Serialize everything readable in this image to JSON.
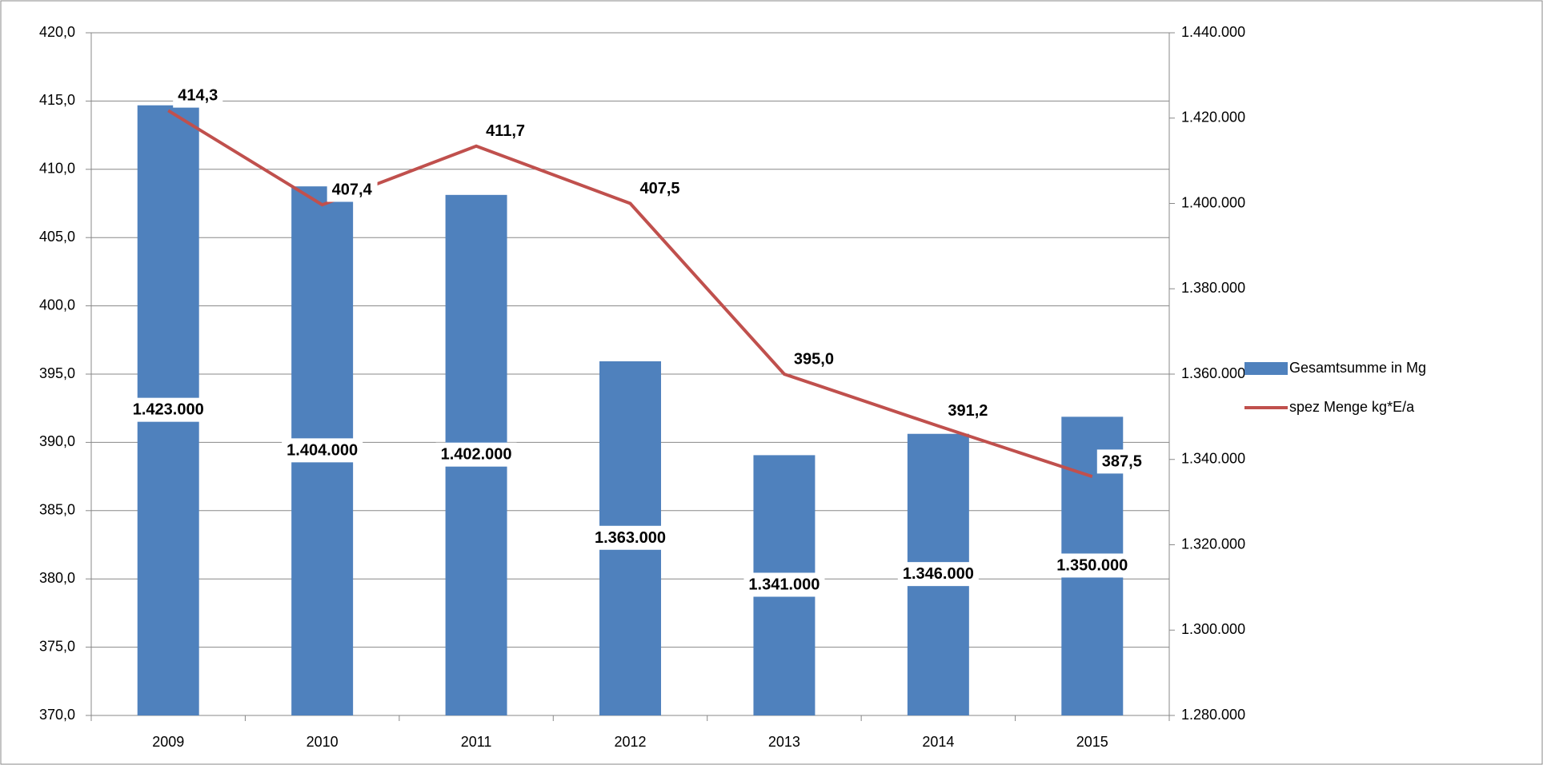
{
  "chart_data": {
    "type": "bar",
    "categories": [
      "2009",
      "2010",
      "2011",
      "2012",
      "2013",
      "2014",
      "2015"
    ],
    "series": [
      {
        "name": "Gesamtsumme in Mg",
        "type": "bar",
        "axis": "y2",
        "color": "#4f81bd",
        "values": [
          1423000,
          1404000,
          1402000,
          1363000,
          1341000,
          1346000,
          1350000
        ],
        "value_labels": [
          "1.423.000",
          "1.404.000",
          "1.402.000",
          "1.363.000",
          "1.341.000",
          "1.346.000",
          "1.350.000"
        ]
      },
      {
        "name": "spez Menge kg*E/a",
        "type": "line",
        "axis": "y",
        "color": "#c0504d",
        "values": [
          414.3,
          407.4,
          411.7,
          407.5,
          395.0,
          391.2,
          387.5
        ],
        "value_labels": [
          "414,3",
          "407,4",
          "411,7",
          "407,5",
          "395,0",
          "391,2",
          "387,5"
        ]
      }
    ],
    "ylim": [
      370,
      420
    ],
    "yticks": [
      {
        "value": 370,
        "label": "370,0"
      },
      {
        "value": 375,
        "label": "375,0"
      },
      {
        "value": 380,
        "label": "380,0"
      },
      {
        "value": 385,
        "label": "385,0"
      },
      {
        "value": 390,
        "label": "390,0"
      },
      {
        "value": 395,
        "label": "395,0"
      },
      {
        "value": 400,
        "label": "400,0"
      },
      {
        "value": 405,
        "label": "405,0"
      },
      {
        "value": 410,
        "label": "410,0"
      },
      {
        "value": 415,
        "label": "415,0"
      },
      {
        "value": 420,
        "label": "420,0"
      }
    ],
    "y2lim": [
      1280000,
      1440000
    ],
    "y2ticks": [
      {
        "value": 1280000,
        "label": "1.280.000"
      },
      {
        "value": 1300000,
        "label": "1.300.000"
      },
      {
        "value": 1320000,
        "label": "1.320.000"
      },
      {
        "value": 1340000,
        "label": "1.340.000"
      },
      {
        "value": 1360000,
        "label": "1.360.000"
      },
      {
        "value": 1380000,
        "label": "1.380.000"
      },
      {
        "value": 1400000,
        "label": "1.400.000"
      },
      {
        "value": 1420000,
        "label": "1.420.000"
      },
      {
        "value": 1440000,
        "label": "1.440.000"
      }
    ],
    "grid": true,
    "legend": "right"
  }
}
